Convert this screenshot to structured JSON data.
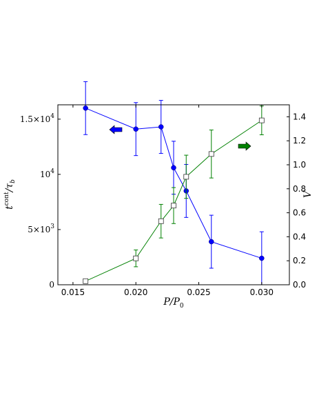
{
  "chart_data": {
    "type": "line",
    "xlabel": "P/P₀",
    "ylabel_left": "t^cont / τ_b",
    "ylabel_right": "V",
    "xlim": [
      0.0138,
      0.0322
    ],
    "ylim_left": [
      0,
      16300
    ],
    "ylim_right": [
      0,
      1.5
    ],
    "x_ticks": [
      0.015,
      0.02,
      0.025,
      0.03
    ],
    "x_tick_labels": [
      "0.015",
      "0.020",
      "0.025",
      "0.030"
    ],
    "y_left_ticks": [
      0,
      5000,
      10000,
      15000
    ],
    "y_left_tick_labels": [
      {
        "base": "0",
        "exp": ""
      },
      {
        "base": "5×10",
        "exp": "3"
      },
      {
        "base": "10",
        "exp": "4"
      },
      {
        "base": "1.5×10",
        "exp": "4"
      }
    ],
    "y_right_ticks": [
      0,
      0.2,
      0.4,
      0.6,
      0.8,
      1.0,
      1.2,
      1.4
    ],
    "y_right_tick_labels": [
      "0.0",
      "0.2",
      "0.4",
      "0.6",
      "0.8",
      "1.0",
      "1.2",
      "1.4"
    ],
    "grid": false,
    "series": [
      {
        "axis": "left",
        "color": "#0000ff",
        "marker": "circle",
        "x": [
          0.016,
          0.02,
          0.022,
          0.023,
          0.024,
          0.026,
          0.03
        ],
        "y": [
          16000,
          14100,
          14300,
          10600,
          8500,
          3900,
          2400
        ],
        "err": [
          2400,
          2400,
          2400,
          2400,
          2400,
          2400,
          2400
        ]
      },
      {
        "axis": "right",
        "color": "#008000",
        "marker": "square-open",
        "x": [
          0.016,
          0.02,
          0.022,
          0.023,
          0.024,
          0.026,
          0.03
        ],
        "y": [
          0.03,
          0.22,
          0.53,
          0.66,
          0.9,
          1.09,
          1.37
        ],
        "err": [
          0,
          0.07,
          0.14,
          0.15,
          0.18,
          0.2,
          0.12
        ]
      }
    ],
    "annotations": [
      {
        "type": "arrow",
        "direction": "left",
        "color": "#0000ff",
        "axis_side": "left"
      },
      {
        "type": "arrow",
        "direction": "right",
        "color": "#008000",
        "axis_side": "right"
      }
    ]
  }
}
